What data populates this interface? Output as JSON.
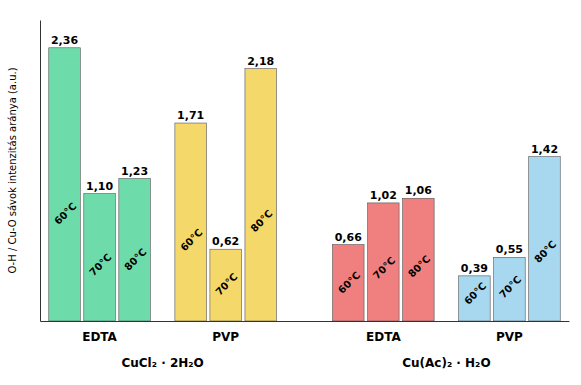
{
  "chart_data": {
    "type": "bar",
    "ylabel": "O-H / Cu-O sávok intenzitás aránya (a.u.)",
    "ylim": [
      0,
      2.6
    ],
    "tick_labels": false,
    "data_labels": true,
    "parents": [
      {
        "label": "CuCl₂ · 2H₂O",
        "groups": [
          {
            "label": "EDTA",
            "color": "#6EDCAA",
            "categories": [
              "60°C",
              "70°C",
              "80°C"
            ],
            "values": [
              2.36,
              1.1,
              1.23
            ],
            "value_labels": [
              "2,36",
              "1,10",
              "1,23"
            ]
          },
          {
            "label": "PVP",
            "color": "#F5D86A",
            "categories": [
              "60°C",
              "70°C",
              "80°C"
            ],
            "values": [
              1.71,
              0.62,
              2.18
            ],
            "value_labels": [
              "1,71",
              "0,62",
              "2,18"
            ]
          }
        ]
      },
      {
        "label": "Cu(Ac)₂ · H₂O",
        "groups": [
          {
            "label": "EDTA",
            "color": "#F08080",
            "categories": [
              "60°C",
              "70°C",
              "80°C"
            ],
            "values": [
              0.66,
              1.02,
              1.06
            ],
            "value_labels": [
              "0,66",
              "1,02",
              "1,06"
            ]
          },
          {
            "label": "PVP",
            "color": "#A8D8F0",
            "categories": [
              "60°C",
              "70°C",
              "80°C"
            ],
            "values": [
              0.39,
              0.55,
              1.42
            ],
            "value_labels": [
              "0,39",
              "0,55",
              "1,42"
            ]
          }
        ]
      }
    ]
  }
}
